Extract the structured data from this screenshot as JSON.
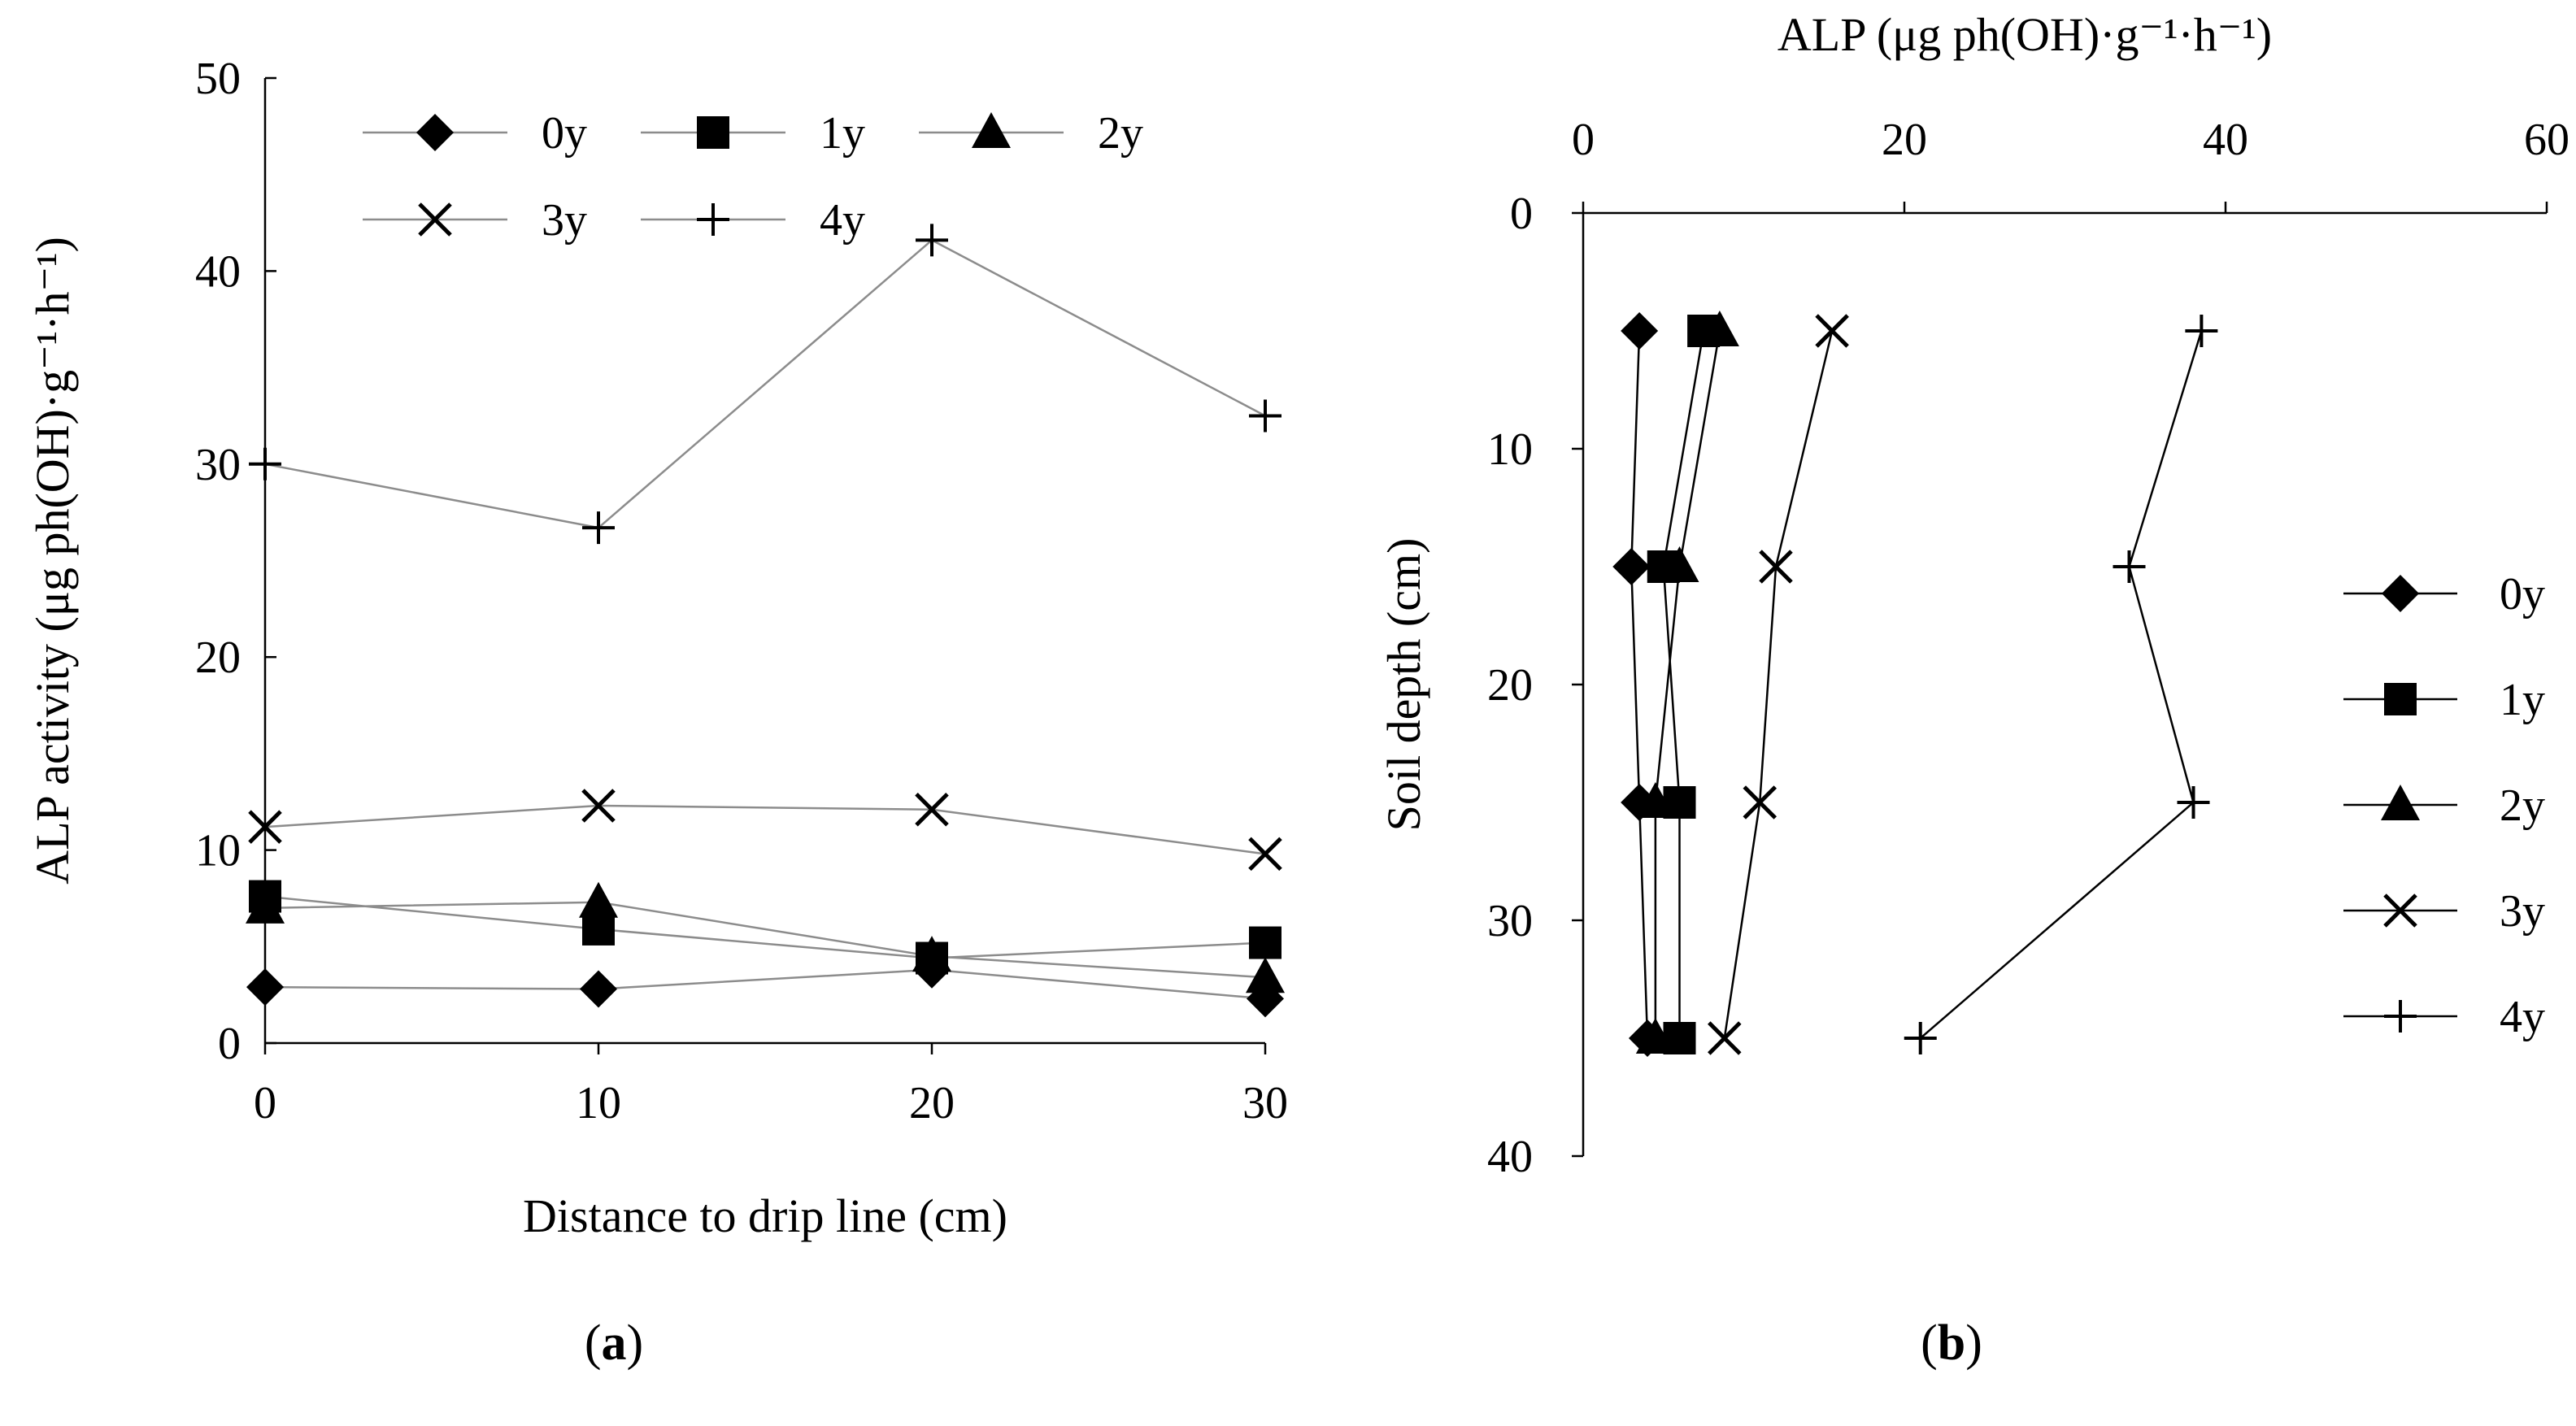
{
  "chart_data": [
    {
      "type": "line",
      "panel": "a",
      "caption_open": "(",
      "caption_letter": "a",
      "caption_close": ")",
      "title": "",
      "xlabel": "Distance to drip line (cm)",
      "ylabel": "ALP activity (μg ph(OH)·g⁻¹·h⁻¹)",
      "x": [
        0,
        10,
        20,
        30
      ],
      "xlim": [
        0,
        30
      ],
      "ylim": [
        0,
        50
      ],
      "xticks": [
        0,
        10,
        20,
        30
      ],
      "yticks": [
        0,
        10,
        20,
        30,
        40,
        50
      ],
      "legend_position": "top-left",
      "series": [
        {
          "name": "0y",
          "marker": "diamond",
          "values": [
            2.9,
            2.8,
            3.8,
            2.3
          ]
        },
        {
          "name": "1y",
          "marker": "square",
          "values": [
            7.6,
            5.9,
            4.4,
            5.2
          ]
        },
        {
          "name": "2y",
          "marker": "triangle",
          "values": [
            7.0,
            7.3,
            4.5,
            3.4
          ]
        },
        {
          "name": "3y",
          "marker": "x",
          "values": [
            11.2,
            12.3,
            12.1,
            9.8
          ]
        },
        {
          "name": "4y",
          "marker": "plus",
          "values": [
            30.0,
            26.7,
            41.6,
            32.5
          ]
        }
      ]
    },
    {
      "type": "line",
      "panel": "b",
      "caption_open": "(",
      "caption_letter": "b",
      "caption_close": ")",
      "title": "",
      "xlabel": "ALP (μg ph(OH)·g⁻¹·h⁻¹)",
      "xlabel_position": "top",
      "ylabel": "Soil depth (cm)",
      "y_inverted": true,
      "y": [
        5,
        15,
        25,
        35
      ],
      "xlim": [
        0,
        60
      ],
      "ylim": [
        0,
        40
      ],
      "xticks": [
        0,
        20,
        40,
        60
      ],
      "yticks": [
        0,
        10,
        20,
        30,
        40
      ],
      "legend_position": "right",
      "series": [
        {
          "name": "0y",
          "marker": "diamond",
          "values": [
            3.5,
            3.0,
            3.5,
            4.0
          ]
        },
        {
          "name": "1y",
          "marker": "square",
          "values": [
            7.5,
            5.0,
            6.0,
            6.0
          ]
        },
        {
          "name": "2y",
          "marker": "triangle",
          "values": [
            8.5,
            6.0,
            4.5,
            4.5
          ]
        },
        {
          "name": "3y",
          "marker": "x",
          "values": [
            15.5,
            12.0,
            11.0,
            8.8
          ]
        },
        {
          "name": "4y",
          "marker": "plus",
          "values": [
            38.5,
            34.0,
            38.0,
            21.0
          ]
        }
      ]
    }
  ]
}
